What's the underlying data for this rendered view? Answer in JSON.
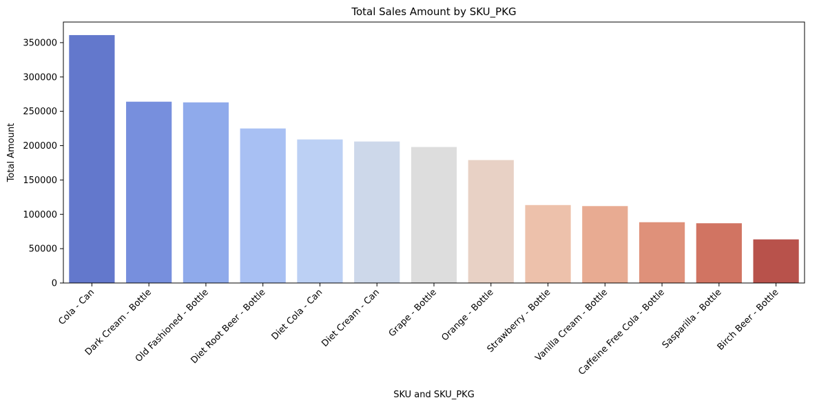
{
  "chart_data": {
    "type": "bar",
    "title": "Total Sales Amount by SKU_PKG",
    "xlabel": "SKU and SKU_PKG",
    "ylabel": "Total Amount",
    "ylim": [
      0,
      380000
    ],
    "yticks": [
      0,
      50000,
      100000,
      150000,
      200000,
      250000,
      300000,
      350000
    ],
    "ytick_labels": [
      "0",
      "50000",
      "100000",
      "150000",
      "200000",
      "250000",
      "300000",
      "350000"
    ],
    "grid": false,
    "legend": "none",
    "palette": "coolwarm",
    "categories": [
      "Cola - Can",
      "Dark Cream - Bottle",
      "Old Fashioned - Bottle",
      "Diet Root Beer - Bottle",
      "Diet Cola - Can",
      "Diet Cream - Can",
      "Grape - Bottle",
      "Orange - Bottle",
      "Strawberry - Bottle",
      "Vanilla Cream - Bottle",
      "Caffeine Free Cola - Bottle",
      "Sasparilla - Bottle",
      "Birch Beer - Bottle"
    ],
    "values": [
      361000,
      264000,
      263000,
      225000,
      209000,
      206000,
      198000,
      179000,
      113500,
      112000,
      88500,
      87000,
      63500
    ],
    "colors": [
      "#6378cc",
      "#778fdd",
      "#8faaeb",
      "#a8c0f3",
      "#bcd0f4",
      "#cdd8ea",
      "#dddddd",
      "#e8d1c5",
      "#edc1ab",
      "#e8ab92",
      "#df917a",
      "#d17462",
      "#b8524b"
    ]
  }
}
